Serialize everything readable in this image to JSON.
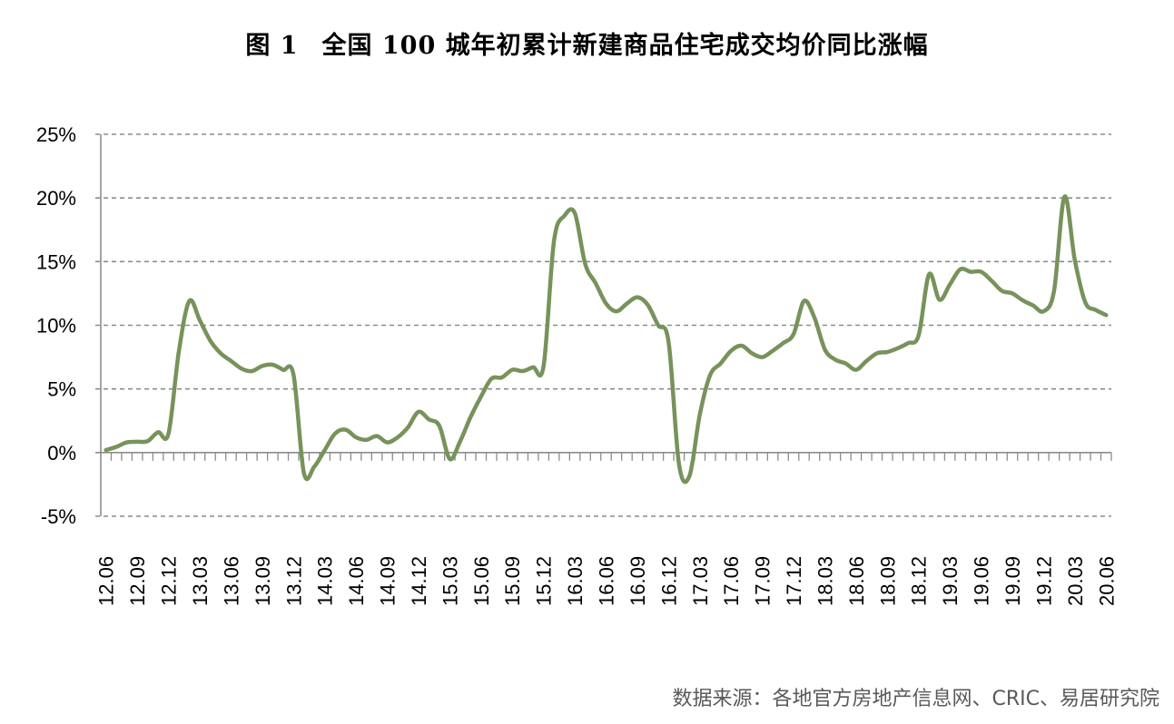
{
  "figure": {
    "number": "图 1",
    "title": "全国 100 城年初累计新建商品住宅成交均价同比涨幅"
  },
  "source": "数据来源：各地官方房地产信息网、CRIC、易居研究院",
  "colors": {
    "line": "#76935b",
    "grid": "#8c8c8c",
    "axis": "#8c8c8c",
    "text": "#000000"
  },
  "chart_data": {
    "type": "line",
    "title": "全国 100 城年初累计新建商品住宅成交均价同比涨幅",
    "xlabel": "",
    "ylabel": "",
    "ylim": [
      -5,
      25
    ],
    "yticks": [
      -5,
      0,
      5,
      10,
      15,
      20,
      25
    ],
    "ytick_labels": [
      "-5%",
      "0%",
      "5%",
      "10%",
      "15%",
      "20%",
      "25%"
    ],
    "grid": "horizontal dashed",
    "legend": null,
    "x_tick_labels": [
      "12.06",
      "12.09",
      "12.12",
      "13.03",
      "13.06",
      "13.09",
      "13.12",
      "14.03",
      "14.06",
      "14.09",
      "14.12",
      "15.03",
      "15.06",
      "15.09",
      "15.12",
      "16.03",
      "16.06",
      "16.09",
      "16.12",
      "17.03",
      "17.06",
      "17.09",
      "17.12",
      "18.03",
      "18.06",
      "18.09",
      "18.12",
      "19.03",
      "19.06",
      "19.09",
      "19.12",
      "20.03",
      "20.06"
    ],
    "x": [
      "12.06",
      "12.07",
      "12.08",
      "12.09",
      "12.10",
      "12.11",
      "12.12",
      "13.01",
      "13.02",
      "13.03",
      "13.04",
      "13.05",
      "13.06",
      "13.07",
      "13.08",
      "13.09",
      "13.10",
      "13.11",
      "13.12",
      "14.01",
      "14.02",
      "14.03",
      "14.04",
      "14.05",
      "14.06",
      "14.07",
      "14.08",
      "14.09",
      "14.10",
      "14.11",
      "14.12",
      "15.01",
      "15.02",
      "15.03",
      "15.04",
      "15.05",
      "15.06",
      "15.07",
      "15.08",
      "15.09",
      "15.10",
      "15.11",
      "15.12",
      "16.01",
      "16.02",
      "16.03",
      "16.04",
      "16.05",
      "16.06",
      "16.07",
      "16.08",
      "16.09",
      "16.10",
      "16.11",
      "16.12",
      "17.01",
      "17.02",
      "17.03",
      "17.04",
      "17.05",
      "17.06",
      "17.07",
      "17.08",
      "17.09",
      "17.10",
      "17.11",
      "17.12",
      "18.01",
      "18.02",
      "18.03",
      "18.04",
      "18.05",
      "18.06",
      "18.07",
      "18.08",
      "18.09",
      "18.10",
      "18.11",
      "18.12",
      "19.01",
      "19.02",
      "19.03",
      "19.04",
      "19.05",
      "19.06",
      "19.07",
      "19.08",
      "19.09",
      "19.10",
      "19.11",
      "19.12",
      "20.01",
      "20.02",
      "20.03",
      "20.04",
      "20.05",
      "20.06"
    ],
    "series": [
      {
        "name": "年初累计新建商品住宅成交均价同比涨幅",
        "unit": "%",
        "values": [
          0.2,
          0.45,
          0.8,
          0.85,
          0.9,
          1.6,
          1.5,
          8.0,
          11.9,
          10.4,
          8.8,
          7.8,
          7.2,
          6.6,
          6.4,
          6.8,
          6.9,
          6.5,
          6.1,
          -1.6,
          -1.1,
          0.2,
          1.5,
          1.8,
          1.2,
          1.0,
          1.3,
          0.8,
          1.2,
          2.0,
          3.2,
          2.6,
          2.1,
          -0.5,
          0.9,
          2.8,
          4.4,
          5.8,
          5.9,
          6.5,
          6.4,
          6.7,
          6.8,
          16.6,
          18.6,
          18.8,
          14.8,
          13.3,
          11.7,
          11.1,
          11.7,
          12.2,
          11.6,
          10.0,
          8.7,
          -0.9,
          -1.85,
          3.0,
          6.1,
          7.0,
          8.0,
          8.4,
          7.8,
          7.5,
          8.0,
          8.6,
          9.3,
          11.9,
          10.6,
          8.1,
          7.3,
          7.0,
          6.5,
          7.2,
          7.8,
          7.9,
          8.2,
          8.6,
          9.2,
          14.0,
          12.0,
          13.2,
          14.4,
          14.2,
          14.2,
          13.5,
          12.7,
          12.5,
          11.95,
          11.55,
          11.1,
          12.7,
          20.1,
          15.1,
          11.8,
          11.2,
          10.8
        ]
      }
    ]
  }
}
